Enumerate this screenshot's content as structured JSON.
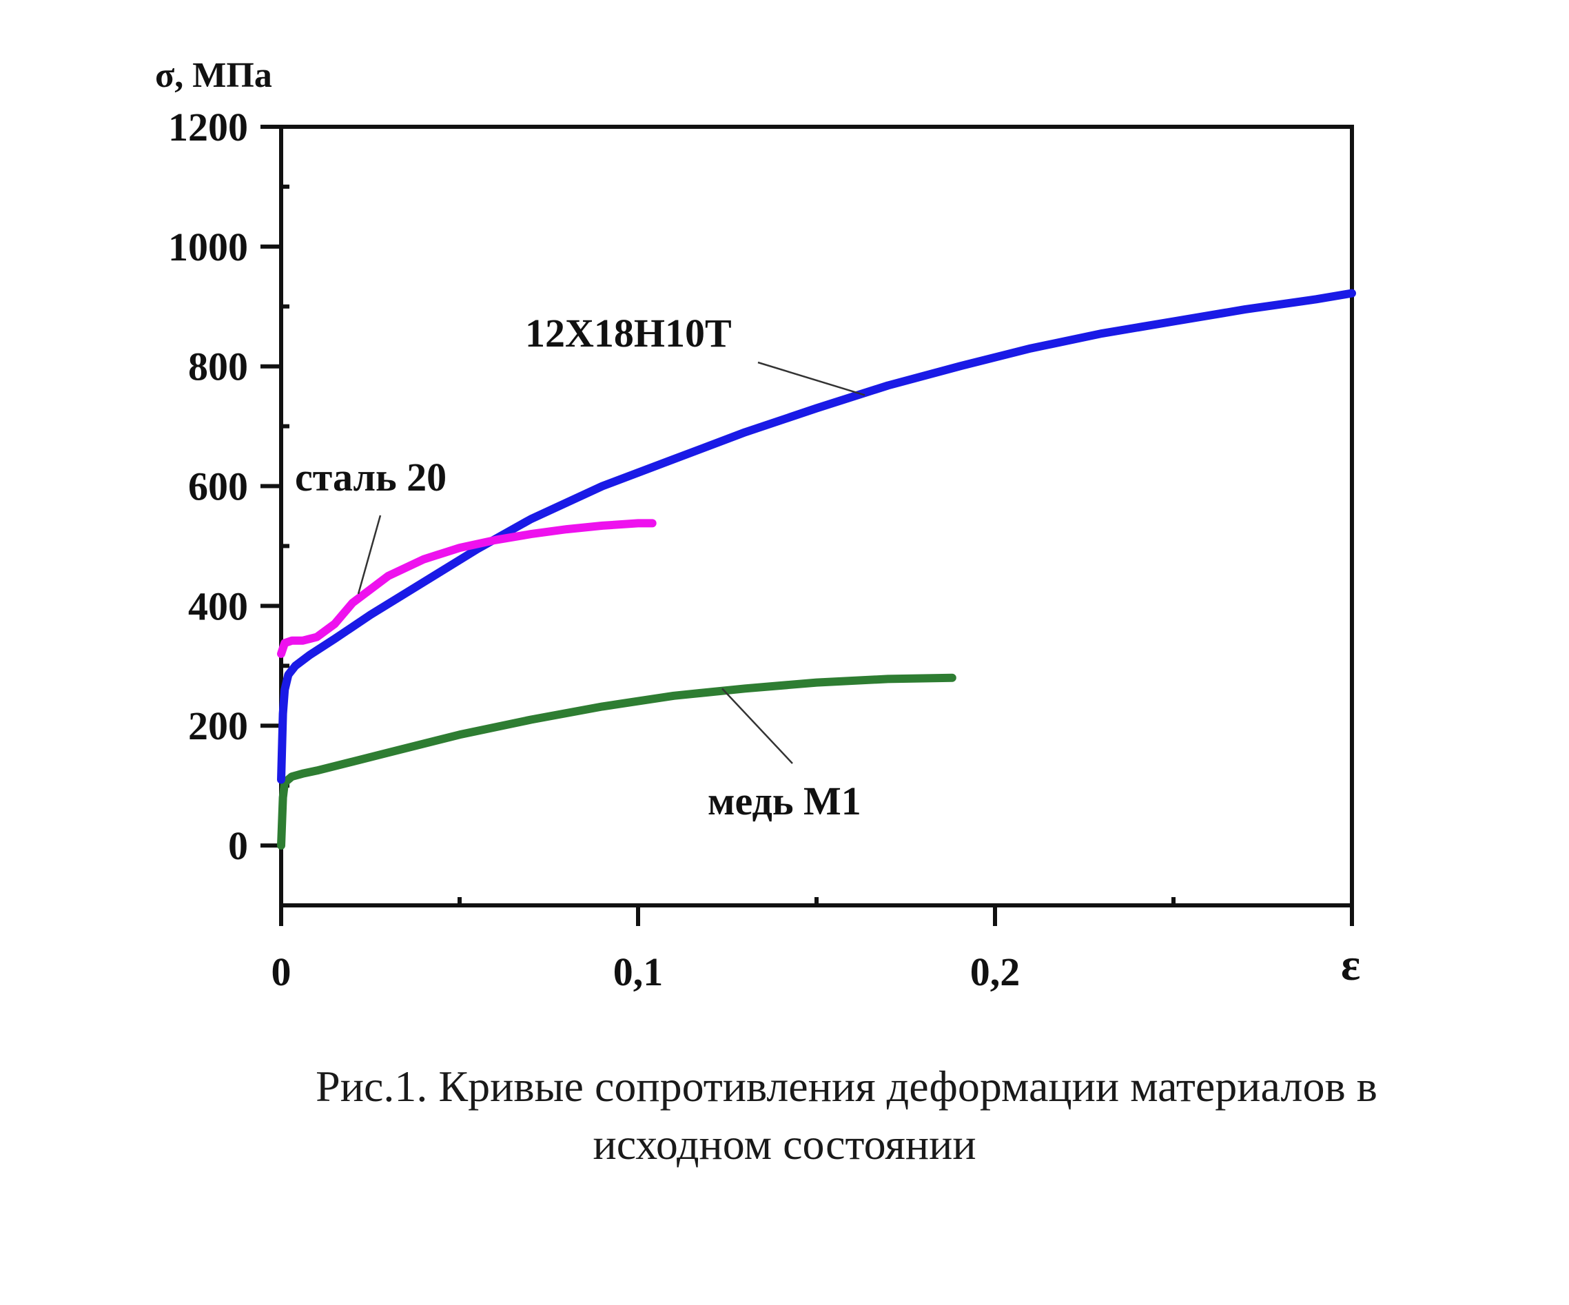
{
  "chart_data": {
    "type": "line",
    "ylabel": "σ, МПа",
    "xlabel": "ε",
    "xlim": [
      0,
      0.3
    ],
    "ylim": [
      -100,
      1200
    ],
    "x_ticks": [
      {
        "value": 0,
        "label": "0"
      },
      {
        "value": 0.1,
        "label": "0,1"
      },
      {
        "value": 0.2,
        "label": "0,2"
      }
    ],
    "y_ticks": [
      {
        "value": 0,
        "label": "0"
      },
      {
        "value": 200,
        "label": "200"
      },
      {
        "value": 400,
        "label": "400"
      },
      {
        "value": 600,
        "label": "600"
      },
      {
        "value": 800,
        "label": "800"
      },
      {
        "value": 1000,
        "label": "1000"
      },
      {
        "value": 1200,
        "label": "1200"
      }
    ],
    "grid": false,
    "series": [
      {
        "name": "12Х18Н10Т",
        "color": "#1a1ae6",
        "x": [
          0,
          0.0005,
          0.001,
          0.002,
          0.004,
          0.008,
          0.015,
          0.025,
          0.04,
          0.055,
          0.07,
          0.09,
          0.11,
          0.13,
          0.15,
          0.17,
          0.19,
          0.21,
          0.23,
          0.25,
          0.27,
          0.29,
          0.3
        ],
        "y": [
          110,
          220,
          260,
          285,
          300,
          318,
          345,
          385,
          440,
          495,
          545,
          600,
          645,
          690,
          730,
          768,
          800,
          830,
          855,
          875,
          895,
          912,
          922
        ]
      },
      {
        "name": "сталь 20",
        "color": "#ee11ee",
        "x": [
          0,
          0.001,
          0.003,
          0.006,
          0.01,
          0.015,
          0.02,
          0.03,
          0.04,
          0.05,
          0.06,
          0.07,
          0.08,
          0.09,
          0.1,
          0.104
        ],
        "y": [
          320,
          338,
          342,
          342,
          348,
          370,
          405,
          450,
          478,
          497,
          510,
          520,
          528,
          534,
          538,
          538
        ]
      },
      {
        "name": "медь М1",
        "color": "#2e7d32",
        "x": [
          0,
          0.0005,
          0.001,
          0.003,
          0.006,
          0.01,
          0.02,
          0.03,
          0.05,
          0.07,
          0.09,
          0.11,
          0.13,
          0.15,
          0.17,
          0.188
        ],
        "y": [
          0,
          80,
          105,
          115,
          120,
          125,
          140,
          155,
          185,
          210,
          232,
          250,
          262,
          272,
          278,
          280
        ]
      }
    ]
  },
  "caption": {
    "line1": "Рис.1. Кривые сопротивления деформации материалов в",
    "line2": "исходном состоянии"
  }
}
